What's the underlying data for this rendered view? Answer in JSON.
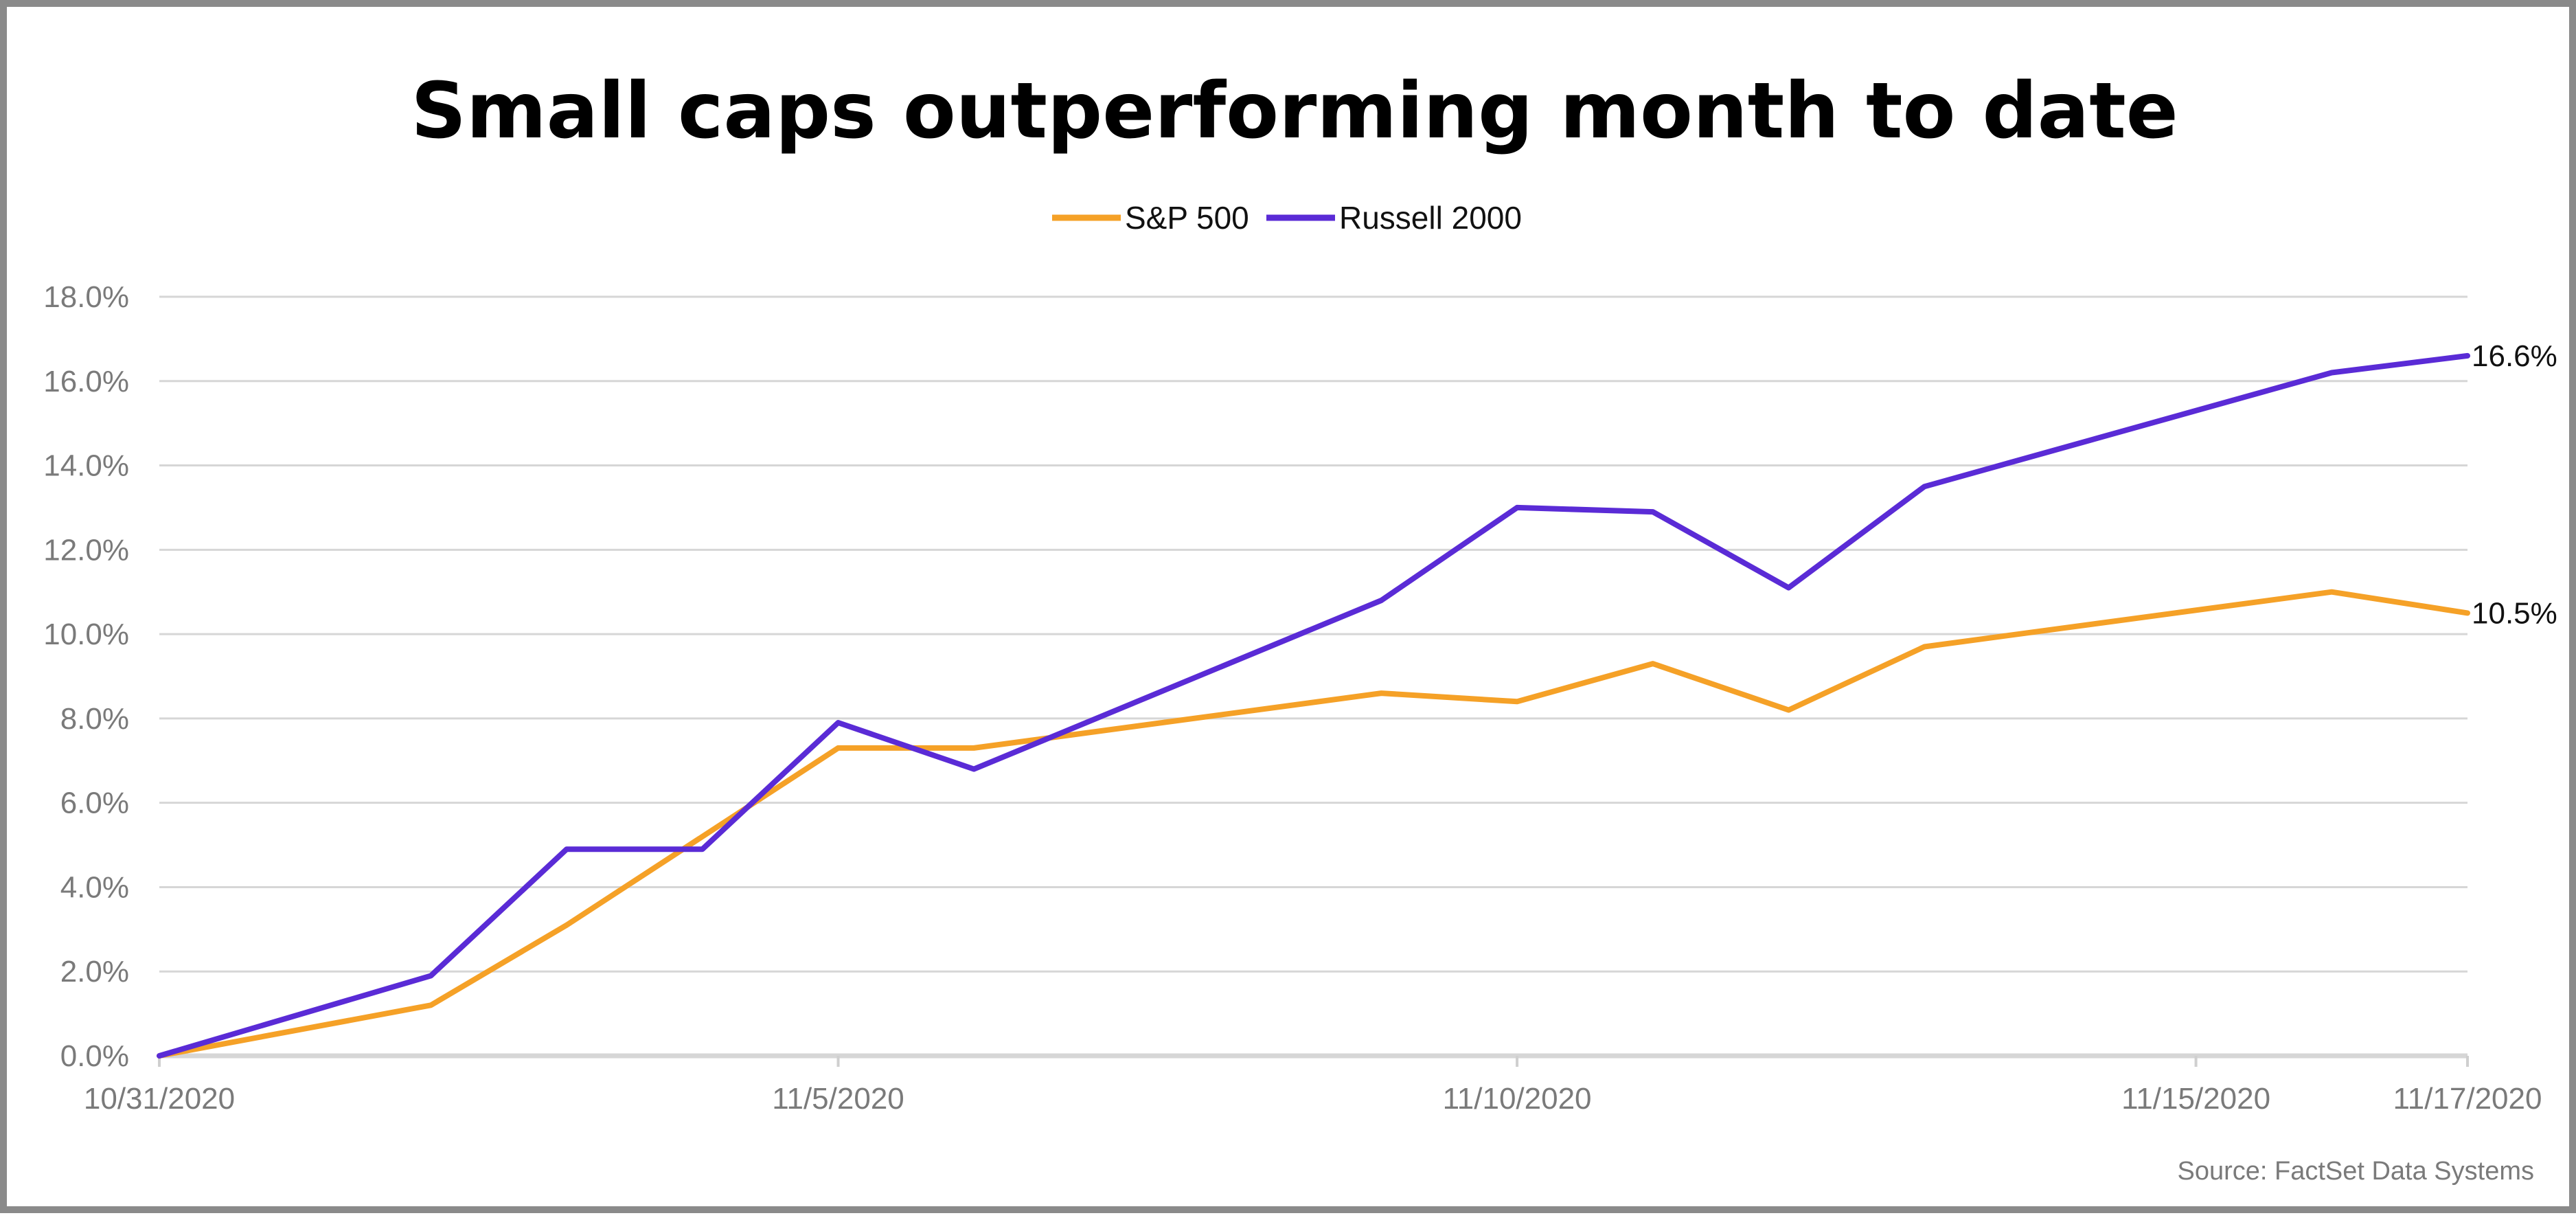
{
  "chart_data": {
    "type": "line",
    "title": "Small caps outperforming month to date",
    "source": "Source: FactSet Data Systems",
    "legend_placement": "top-center",
    "grid": true,
    "x": [
      "10/31/2020",
      "11/2/2020",
      "11/3/2020",
      "11/4/2020",
      "11/5/2020",
      "11/6/2020",
      "11/9/2020",
      "11/10/2020",
      "11/11/2020",
      "11/12/2020",
      "11/13/2020",
      "11/16/2020",
      "11/17/2020"
    ],
    "x_dates": [
      "2020-10-31",
      "2020-11-02",
      "2020-11-03",
      "2020-11-04",
      "2020-11-05",
      "2020-11-06",
      "2020-11-09",
      "2020-11-10",
      "2020-11-11",
      "2020-11-12",
      "2020-11-13",
      "2020-11-16",
      "2020-11-17"
    ],
    "x_tick_labels": [
      "10/31/2020",
      "11/5/2020",
      "11/10/2020",
      "11/15/2020",
      "11/17/2020"
    ],
    "x_tick_dates": [
      "2020-10-31",
      "2020-11-05",
      "2020-11-10",
      "2020-11-15",
      "2020-11-17"
    ],
    "ylim": [
      0,
      18
    ],
    "y_ticks": [
      0,
      2,
      4,
      6,
      8,
      10,
      12,
      14,
      16,
      18
    ],
    "y_tick_labels": [
      "0.0%",
      "2.0%",
      "4.0%",
      "6.0%",
      "8.0%",
      "10.0%",
      "12.0%",
      "14.0%",
      "16.0%",
      "18.0%"
    ],
    "series": [
      {
        "name": "S&P 500",
        "color": "#F5A127",
        "values": [
          0.0,
          1.2,
          3.1,
          5.2,
          7.3,
          7.3,
          8.6,
          8.4,
          9.3,
          8.2,
          9.7,
          11.0,
          10.5
        ],
        "end_label": "10.5%"
      },
      {
        "name": "Russell 2000",
        "color": "#5A2BD6",
        "values": [
          0.0,
          1.9,
          4.9,
          4.9,
          7.9,
          6.8,
          10.8,
          13.0,
          12.9,
          11.1,
          13.5,
          16.2,
          16.6
        ],
        "end_label": "16.6%"
      }
    ]
  }
}
